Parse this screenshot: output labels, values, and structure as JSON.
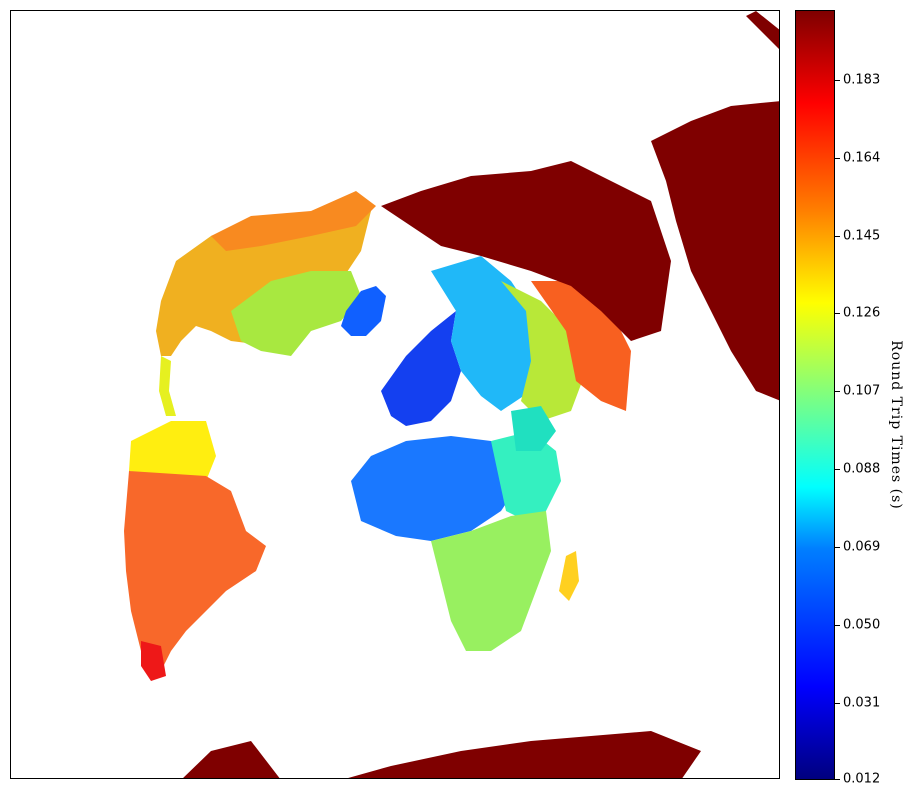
{
  "colorbar": {
    "title": "Round Trip Times (s)",
    "ticks": [
      "0.183",
      "0.164",
      "0.145",
      "0.126",
      "0.107",
      "0.088",
      "0.069",
      "0.050",
      "0.031",
      "0.012"
    ],
    "min": 0.012,
    "max": 0.202,
    "colormap": "jet"
  },
  "colors": {
    "far": "#7f0000",
    "frame": "#000000"
  }
}
